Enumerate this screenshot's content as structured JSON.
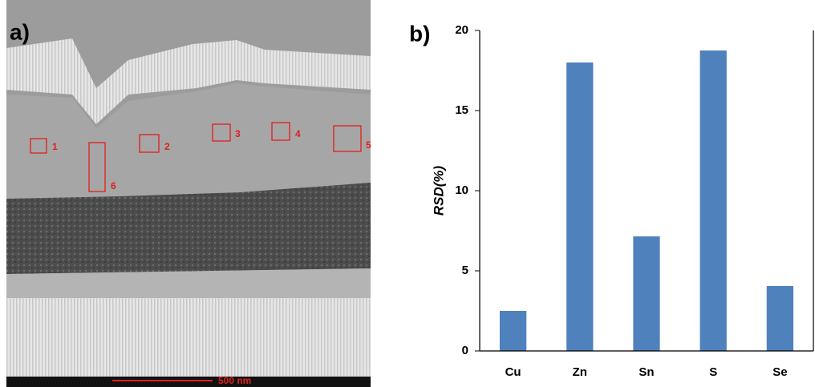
{
  "image": {
    "panel_label": "a)",
    "regions": [
      "1",
      "2",
      "3",
      "4",
      "5",
      "6"
    ],
    "scale_bar": "500 nm"
  },
  "chart_data": {
    "type": "bar",
    "panel_label": "b)",
    "y_label": "RSD(%)",
    "categories": [
      "Cu",
      "Zn",
      "Sn",
      "S",
      "Se"
    ],
    "values": [
      2.5,
      18,
      7.15,
      18.75,
      4.05
    ],
    "color": "#4f81bd",
    "ylim": [
      0,
      20
    ],
    "yticks": [
      0,
      5,
      10,
      15,
      20
    ],
    "grid": false
  }
}
